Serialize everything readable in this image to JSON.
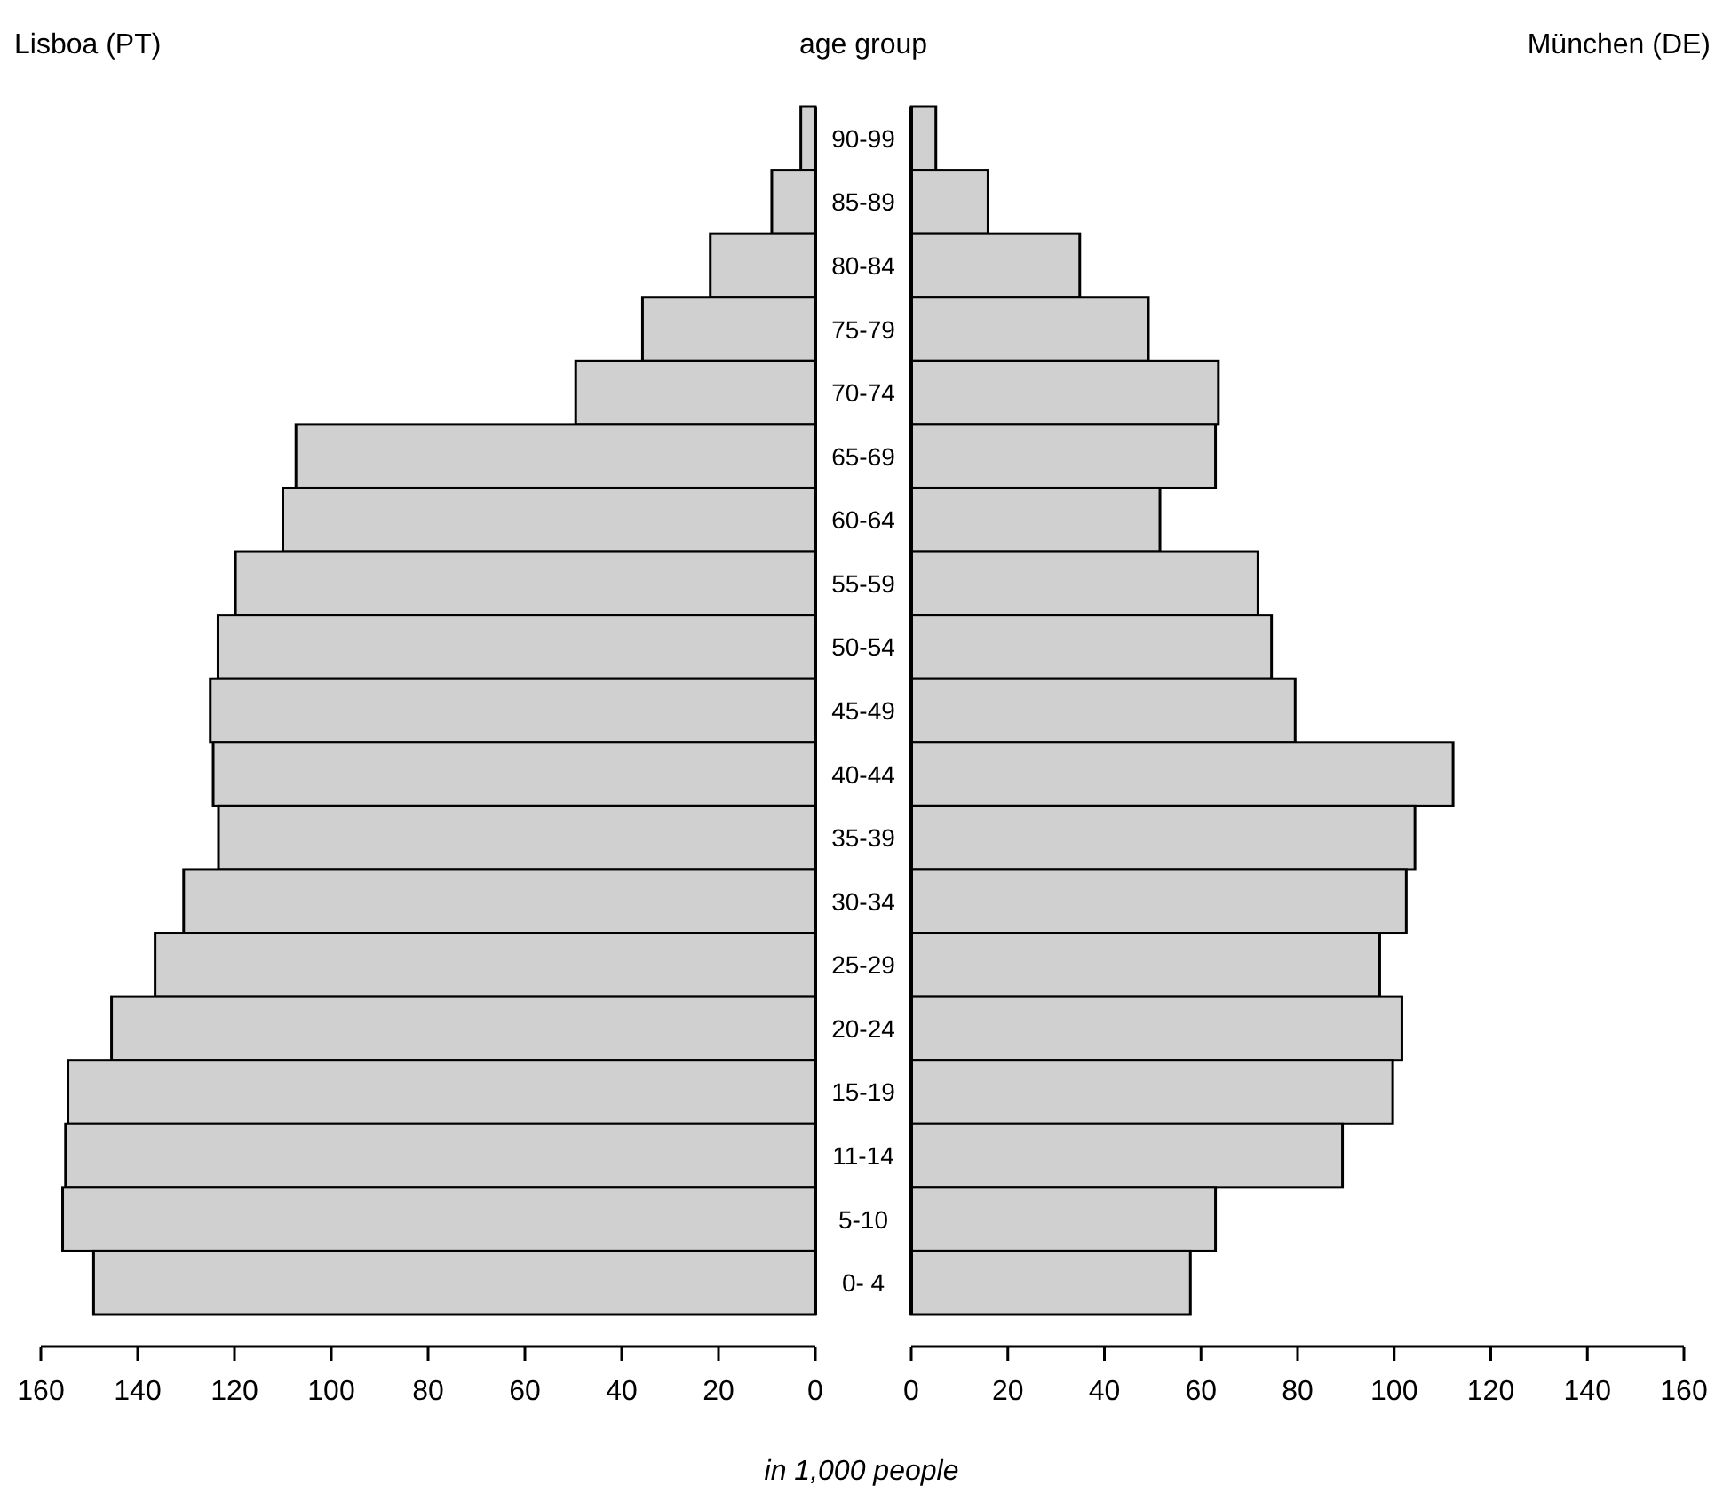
{
  "chart_data": [
    {
      "type": "bar",
      "orientation": "horizontal",
      "title": "Lisboa (PT)",
      "xlabel": "in 1,000 people",
      "tick_labels": "x",
      "categories": [
        null,
        null,
        null,
        null,
        null,
        null,
        null,
        null,
        null,
        null,
        null,
        null,
        null,
        null,
        null,
        null,
        null,
        null,
        null
      ],
      "values": [
        3,
        9,
        21.7,
        35.7,
        49.5,
        107.3,
        110,
        119.8,
        123.4,
        125,
        124.4,
        123.3,
        130.5,
        136.4,
        145.4,
        154.4,
        154.9,
        155.5,
        149.1
      ],
      "color": "#d0d0d0",
      "xlim": [
        160,
        0
      ],
      "xticks": [
        160,
        140,
        120,
        100,
        80,
        60,
        40,
        20,
        0
      ],
      "grid": false,
      "legend": false
    },
    {
      "type": "bar",
      "orientation": "horizontal",
      "title": "München (DE)",
      "ylabel": "age group",
      "categories": [
        "90-99",
        "85-89",
        "80-84",
        "75-79",
        "70-74",
        "65-69",
        "60-64",
        "55-59",
        "50-54",
        "45-49",
        "40-44",
        "35-39",
        "30-34",
        "25-29",
        "20-24",
        "15-19",
        "11-14",
        "5-10",
        "0- 4"
      ],
      "values": [
        5.1,
        15.9,
        34.9,
        49.1,
        63.6,
        63,
        51.5,
        71.8,
        74.6,
        79.5,
        112.2,
        104.3,
        102.5,
        97,
        101.6,
        99.7,
        89.3,
        63,
        57.8
      ],
      "color": "#d0d0d0",
      "xlim": [
        0,
        160
      ],
      "xticks": [
        0,
        20,
        40,
        60,
        80,
        100,
        120,
        140,
        160
      ],
      "grid": false,
      "legend": false
    }
  ]
}
